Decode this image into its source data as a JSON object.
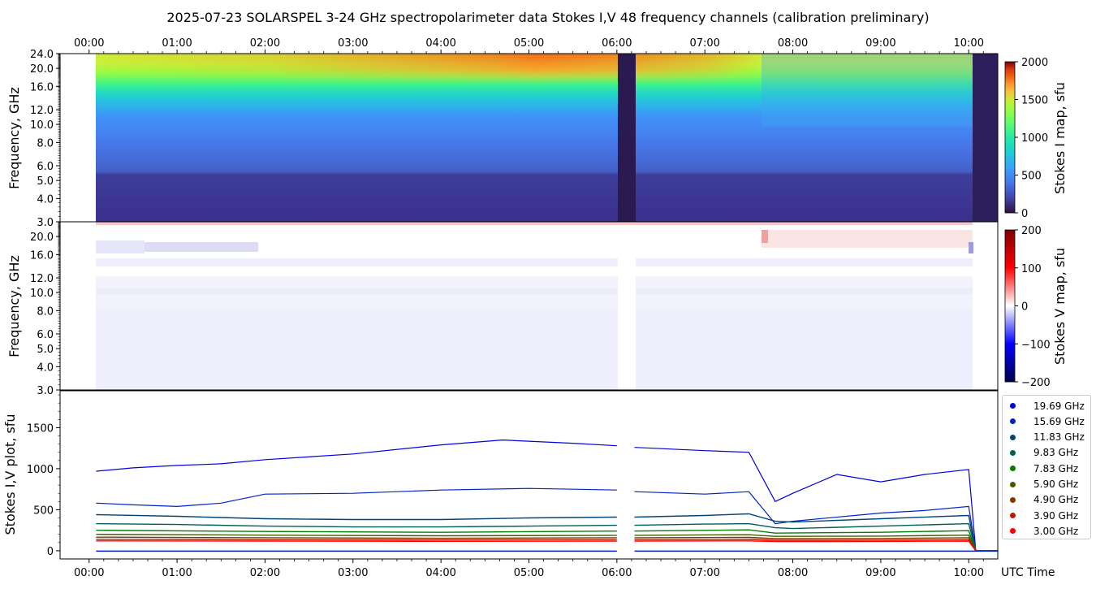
{
  "title": "2025-07-23  SOLARSPEL  3-24 GHz spectropolarimeter data   Stokes I,V   48 frequency channels   (calibration preliminary)",
  "time_ticks": [
    "00:00",
    "01:00",
    "02:00",
    "03:00",
    "04:00",
    "05:00",
    "06:00",
    "07:00",
    "08:00",
    "09:00",
    "10:00"
  ],
  "xlabel_bottom": "UTC Time",
  "colors": {
    "series": [
      "#0000e0",
      "#0022c8",
      "#004478",
      "#006050",
      "#008000",
      "#445c00",
      "#803800",
      "#c01800",
      "#ff0000"
    ]
  },
  "chart_data": [
    {
      "type": "heatmap",
      "panel": "Stokes I map",
      "ylabel": "Frequency, GHz",
      "colorbar_label": "Stokes I map, sfu",
      "colorbar_ticks": [
        "0",
        "500",
        "1000",
        "1500",
        "2000"
      ],
      "clim": [
        0,
        2000
      ],
      "y_ticks": [
        "3.0",
        "4.0",
        "5.0",
        "6.0",
        "8.0",
        "10.0",
        "12.0",
        "16.0",
        "20.0",
        "24.0"
      ],
      "ylim": [
        3.0,
        24.0
      ],
      "yscale": "log",
      "x_range_hours": [
        -0.33,
        10.33
      ],
      "data_start_hours": 0.08,
      "gaps_hours": [
        [
          6.0,
          6.2
        ]
      ],
      "colormap": "turbo"
    },
    {
      "type": "heatmap",
      "panel": "Stokes V map",
      "ylabel": "Frequency, GHz",
      "colorbar_label": "Stokes V map, sfu",
      "colorbar_ticks": [
        "200",
        "100",
        "0",
        "−100",
        "−200"
      ],
      "clim": [
        -200,
        200
      ],
      "y_ticks": [
        "3.0",
        "4.0",
        "5.0",
        "6.0",
        "8.0",
        "10.0",
        "12.0",
        "16.0",
        "20.0"
      ],
      "ylim": [
        3.0,
        24.0
      ],
      "yscale": "log",
      "colormap": "seismic"
    },
    {
      "type": "line",
      "panel": "Stokes I,V plot",
      "ylabel": "Stokes I,V plot, sfu",
      "xlabel": "UTC Time",
      "y_ticks": [
        "0",
        "500",
        "1000",
        "1500"
      ],
      "ylim": [
        -100,
        1950
      ],
      "x_unit": "hours UTC",
      "series": [
        {
          "name": "19.69 GHz",
          "x": [
            0.08,
            0.5,
            1.0,
            1.5,
            2.0,
            3.0,
            4.0,
            4.7,
            5.5,
            6.0,
            6.2,
            7.0,
            7.5,
            7.8,
            8.0,
            8.5,
            9.0,
            9.5,
            10.0,
            10.08,
            10.33
          ],
          "values": [
            970,
            1010,
            1040,
            1060,
            1110,
            1180,
            1290,
            1350,
            1310,
            1280,
            1260,
            1220,
            1200,
            600,
            700,
            930,
            840,
            930,
            990,
            0,
            0
          ]
        },
        {
          "name": "15.69 GHz",
          "x": [
            0.08,
            0.5,
            1.0,
            1.5,
            2.0,
            3.0,
            4.0,
            5.0,
            6.0,
            6.2,
            7.0,
            7.5,
            7.8,
            8.0,
            9.0,
            9.5,
            10.0,
            10.08,
            10.33
          ],
          "values": [
            580,
            560,
            540,
            580,
            690,
            700,
            740,
            760,
            740,
            720,
            690,
            720,
            330,
            360,
            460,
            490,
            540,
            0,
            0
          ]
        },
        {
          "name": "11.83 GHz",
          "x": [
            0.08,
            1.0,
            2.0,
            3.0,
            4.0,
            5.0,
            6.0,
            6.2,
            7.0,
            7.5,
            7.8,
            8.0,
            9.0,
            10.0,
            10.08,
            10.33
          ],
          "values": [
            440,
            420,
            390,
            380,
            380,
            400,
            410,
            410,
            430,
            450,
            360,
            350,
            390,
            430,
            0,
            0
          ]
        },
        {
          "name": "9.83 GHz",
          "x": [
            0.08,
            1.0,
            2.0,
            3.0,
            4.0,
            5.0,
            6.0,
            6.2,
            7.0,
            7.5,
            7.8,
            8.0,
            9.0,
            10.0,
            10.08,
            10.33
          ],
          "values": [
            330,
            320,
            300,
            290,
            290,
            300,
            310,
            310,
            325,
            330,
            280,
            270,
            300,
            330,
            0,
            0
          ]
        },
        {
          "name": "7.83 GHz",
          "x": [
            0.08,
            2.0,
            4.0,
            6.0,
            6.2,
            7.5,
            7.8,
            9.0,
            10.0,
            10.08,
            10.33
          ],
          "values": [
            250,
            235,
            225,
            240,
            240,
            255,
            215,
            225,
            245,
            0,
            0
          ]
        },
        {
          "name": "5.90 GHz",
          "x": [
            0.08,
            2.0,
            4.0,
            6.0,
            6.2,
            7.5,
            7.8,
            9.0,
            10.0,
            10.08,
            10.33
          ],
          "values": [
            200,
            190,
            182,
            188,
            188,
            195,
            175,
            178,
            190,
            0,
            0
          ]
        },
        {
          "name": "4.90 GHz",
          "x": [
            0.08,
            2.0,
            4.0,
            6.0,
            6.2,
            7.5,
            7.8,
            9.0,
            10.0,
            10.08,
            10.33
          ],
          "values": [
            165,
            158,
            152,
            158,
            158,
            162,
            148,
            150,
            158,
            0,
            0
          ]
        },
        {
          "name": "3.90 GHz",
          "x": [
            0.08,
            2.0,
            4.0,
            6.0,
            6.2,
            7.5,
            7.8,
            9.0,
            10.0,
            10.08,
            10.33
          ],
          "values": [
            140,
            135,
            132,
            136,
            136,
            138,
            128,
            130,
            135,
            0,
            0
          ]
        },
        {
          "name": "3.00 GHz",
          "x": [
            0.08,
            2.0,
            4.0,
            6.0,
            6.2,
            7.5,
            7.8,
            9.0,
            10.0,
            10.08,
            10.33
          ],
          "values": [
            120,
            118,
            115,
            118,
            118,
            120,
            112,
            114,
            118,
            0,
            0
          ]
        }
      ],
      "gaps_hours": [
        [
          6.0,
          6.2
        ]
      ],
      "legend": "right-outside"
    }
  ]
}
